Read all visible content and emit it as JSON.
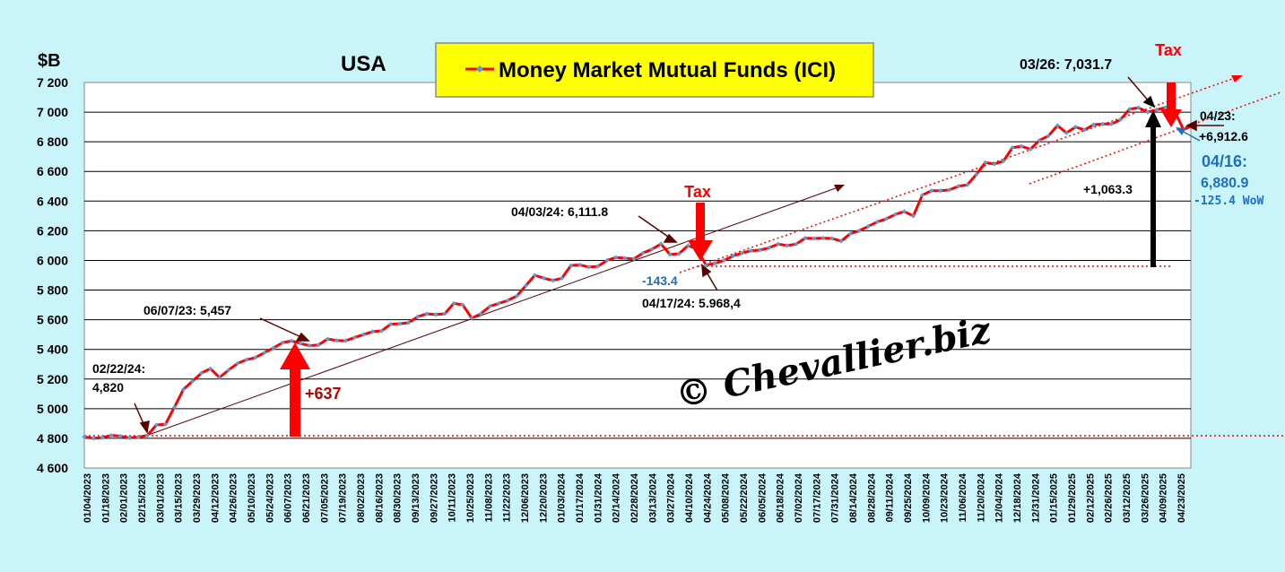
{
  "chart_data": {
    "type": "line",
    "title": "USA",
    "ylabel": "$B",
    "ylim": [
      4600,
      7200
    ],
    "yticks": [
      "4 600",
      "4 800",
      "5 000",
      "5 200",
      "5 400",
      "5 600",
      "5 800",
      "6 000",
      "6 200",
      "6 400",
      "6 600",
      "6 800",
      "7 000",
      "7 200"
    ],
    "grid": true,
    "legend": {
      "placement": "top-center",
      "label": "Money Market Mutual Funds (ICI)"
    },
    "x_tick_labels": [
      "01/04/2023",
      "01/18/2023",
      "02/01/2023",
      "02/15/2023",
      "03/01/2023",
      "03/15/2023",
      "03/29/2023",
      "04/12/2023",
      "04/26/2023",
      "05/10/2023",
      "05/24/2023",
      "06/07/2023",
      "06/21/2023",
      "07/05/2023",
      "07/19/2023",
      "08/02/2023",
      "08/16/2023",
      "08/30/2023",
      "09/13/2023",
      "09/27/2023",
      "10/11/2023",
      "10/25/2023",
      "11/08/2023",
      "11/22/2023",
      "12/06/2023",
      "12/20/2023",
      "01/03/2024",
      "01/17/2024",
      "01/31/2024",
      "02/14/2024",
      "02/28/2024",
      "03/13/2024",
      "03/27/2024",
      "04/10/2024",
      "04/24/2024",
      "05/08/2024",
      "05/22/2024",
      "06/05/2024",
      "06/18/2024",
      "07/02/2024",
      "07/17/2024",
      "07/31/2024",
      "08/14/2024",
      "08/28/2024",
      "09/11/2024",
      "09/25/2024",
      "10/09/2024",
      "10/23/2024",
      "11/06/2024",
      "11/20/2024",
      "12/04/2024",
      "12/18/2024",
      "12/31/2024",
      "01/15/2025",
      "01/29/2025",
      "02/12/2025",
      "02/26/2025",
      "03/12/2025",
      "03/26/2025",
      "04/09/2025",
      "04/23/2025"
    ],
    "series": [
      {
        "name": "Money Market Mutual Funds (ICI)",
        "color": "#ff0000",
        "marker_color": "#5b9bd5",
        "values": [
          4810,
          4800,
          4805,
          4820,
          4815,
          4803,
          4808,
          4820,
          4890,
          4895,
          5010,
          5130,
          5185,
          5240,
          5270,
          5210,
          5260,
          5305,
          5330,
          5345,
          5378,
          5410,
          5445,
          5457,
          5440,
          5425,
          5430,
          5470,
          5460,
          5458,
          5480,
          5500,
          5520,
          5525,
          5570,
          5573,
          5580,
          5620,
          5640,
          5635,
          5640,
          5710,
          5700,
          5610,
          5640,
          5690,
          5710,
          5730,
          5760,
          5830,
          5900,
          5880,
          5865,
          5880,
          5965,
          5970,
          5955,
          5960,
          6000,
          6020,
          6015,
          6010,
          6050,
          6075,
          6111.8,
          6040,
          6045,
          6100,
          6078,
          5968.4,
          5980,
          6000,
          6030,
          6050,
          6065,
          6070,
          6085,
          6110,
          6100,
          6110,
          6150,
          6148,
          6150,
          6148,
          6130,
          6180,
          6200,
          6230,
          6260,
          6280,
          6310,
          6330,
          6300,
          6440,
          6470,
          6470,
          6475,
          6500,
          6510,
          6580,
          6660,
          6650,
          6670,
          6760,
          6770,
          6750,
          6810,
          6840,
          6910,
          6860,
          6900,
          6880,
          6915,
          6920,
          6920,
          6950,
          7020,
          7030,
          7000,
          7015,
          7031.7,
          7006.3,
          6880.9,
          6912.6
        ]
      }
    ],
    "annotations": {
      "feb22": [
        "02/22/24:",
        "4,820"
      ],
      "jun07": "06/07/23: 5,457",
      "plus637": "+637",
      "apr03": "04/03/24: 6,111.8",
      "tax1": "Tax",
      "minus143": "-143.4",
      "apr17": "04/17/24: 5.968,4",
      "mar26": "03/26: 7,031.7",
      "tax2": "Tax",
      "apr23": [
        "04/23:",
        "+6,912.6"
      ],
      "apr16": [
        "04/16:",
        "6,880.9"
      ],
      "wow": "-125.4 WoW",
      "plus1063": "+1,063.3",
      "watermark": "© Chevallier.biz"
    }
  }
}
